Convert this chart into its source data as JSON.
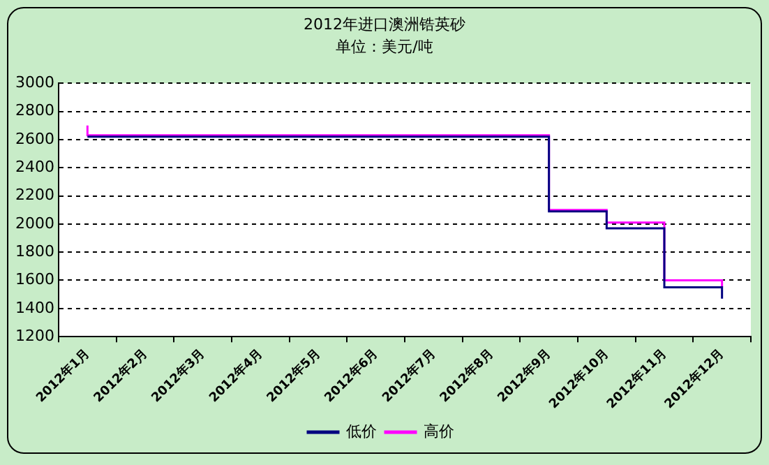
{
  "chart_data": {
    "type": "step",
    "title": "2012年进口澳洲锆英砂",
    "subtitle": "单位：美元/吨",
    "categories": [
      "2012年1月",
      "2012年2月",
      "2012年3月",
      "2012年4月",
      "2012年5月",
      "2012年6月",
      "2012年7月",
      "2012年8月",
      "2012年9月",
      "2012年10月",
      "2012年11月",
      "2012年12月"
    ],
    "series": [
      {
        "name": "低价",
        "color": "#000080",
        "x": [
          "2012年1月",
          "2012年9月",
          "2012年10月",
          "2012年11月",
          "2012年12月"
        ],
        "values": [
          2620,
          2090,
          1970,
          1550,
          1470
        ]
      },
      {
        "name": "高价",
        "color": "#ff00ff",
        "x": [
          "2012年1月",
          "2012年1月",
          "2012年9月",
          "2012年10月",
          "2012年11月",
          "2012年12月"
        ],
        "values": [
          2700,
          2630,
          2100,
          2010,
          1600,
          1550
        ]
      }
    ],
    "ylim": [
      1200,
      3000
    ],
    "yticks": [
      1200,
      1400,
      1600,
      1800,
      2000,
      2200,
      2400,
      2600,
      2800,
      3000
    ],
    "grid": "y",
    "legend": "bottom",
    "marker": "none"
  }
}
